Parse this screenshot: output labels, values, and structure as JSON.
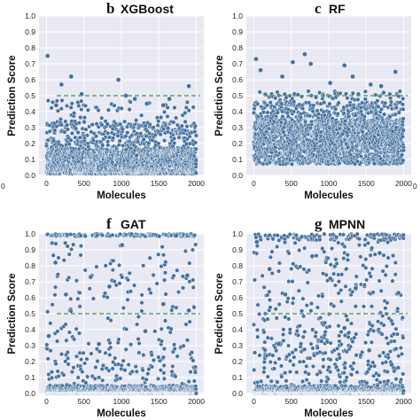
{
  "colors": {
    "plot_bg": "#e8e9f3",
    "grid": "#ffffff",
    "point": "#44719f",
    "point_edge": "#ffffff",
    "threshold": "#5aa469"
  },
  "edge_ticks": {
    "left": [
      "0"
    ],
    "right": [
      "0"
    ]
  },
  "chart_data": [
    {
      "panel": "b",
      "type": "scatter",
      "title": "XGBoost",
      "xlabel": "Molecules",
      "ylabel": "Prediction Score",
      "xticks": [
        "0",
        "500",
        "1000",
        "1500",
        "2000"
      ],
      "yticks": [
        "0.0",
        "0.1",
        "0.2",
        "0.3",
        "0.4",
        "0.5",
        "0.6",
        "0.7",
        "0.8",
        "0.9",
        "1.0"
      ],
      "xlim": [
        -100,
        2100
      ],
      "ylim": [
        0,
        1
      ],
      "threshold": 0.5,
      "grid": true,
      "n_points": 2000,
      "y_range": [
        0.0,
        0.76
      ],
      "highlighted": [
        {
          "x": 15,
          "y": 0.75
        },
        {
          "x": 330,
          "y": 0.62
        },
        {
          "x": 200,
          "y": 0.57
        },
        {
          "x": 470,
          "y": 0.51
        },
        {
          "x": 960,
          "y": 0.6
        },
        {
          "x": 1060,
          "y": 0.5
        },
        {
          "x": 1900,
          "y": 0.56
        },
        {
          "x": 1180,
          "y": 0.48
        },
        {
          "x": 1640,
          "y": 0.48
        },
        {
          "x": 1340,
          "y": 0.45
        },
        {
          "x": 1560,
          "y": 0.44
        },
        {
          "x": 130,
          "y": 0.44
        }
      ]
    },
    {
      "panel": "c",
      "type": "scatter",
      "title": "RF",
      "xlabel": "Molecules",
      "ylabel": "Prediction Score",
      "xticks": [
        "0",
        "500",
        "1000",
        "1500",
        "2000"
      ],
      "yticks": [
        "0.0",
        "0.1",
        "0.2",
        "0.3",
        "0.4",
        "0.5",
        "0.6",
        "0.7",
        "0.8",
        "0.9",
        "1.0"
      ],
      "xlim": [
        -100,
        2100
      ],
      "ylim": [
        0,
        1
      ],
      "threshold": 0.5,
      "grid": true,
      "n_points": 2000,
      "y_range": [
        0.05,
        0.76
      ],
      "highlighted": [
        {
          "x": 30,
          "y": 0.73
        },
        {
          "x": 90,
          "y": 0.66
        },
        {
          "x": 520,
          "y": 0.71
        },
        {
          "x": 680,
          "y": 0.76
        },
        {
          "x": 760,
          "y": 0.7
        },
        {
          "x": 1210,
          "y": 0.69
        },
        {
          "x": 1320,
          "y": 0.62
        },
        {
          "x": 1890,
          "y": 0.65
        },
        {
          "x": 380,
          "y": 0.62
        },
        {
          "x": 1020,
          "y": 0.58
        },
        {
          "x": 1560,
          "y": 0.57
        },
        {
          "x": 1700,
          "y": 0.56
        }
      ]
    },
    {
      "panel": "f",
      "type": "scatter",
      "title": "GAT",
      "xlabel": "Molecules",
      "ylabel": "Prediction Score",
      "xticks": [
        "0",
        "500",
        "1000",
        "1500",
        "2000"
      ],
      "yticks": [
        "0.0",
        "0.1",
        "0.2",
        "0.3",
        "0.4",
        "0.5",
        "0.6",
        "0.7",
        "0.8",
        "0.9",
        "1.0"
      ],
      "xlim": [
        -100,
        2100
      ],
      "ylim": [
        0,
        1
      ],
      "threshold": 0.5,
      "grid": true,
      "n_points": 2000,
      "y_range": [
        0.0,
        1.0
      ],
      "highlighted": [
        {
          "x": 120,
          "y": 0.82
        },
        {
          "x": 260,
          "y": 0.62
        },
        {
          "x": 590,
          "y": 0.73
        },
        {
          "x": 840,
          "y": 0.67
        },
        {
          "x": 1010,
          "y": 0.93
        },
        {
          "x": 1560,
          "y": 0.56
        },
        {
          "x": 1880,
          "y": 0.74
        },
        {
          "x": 1900,
          "y": 0.52
        },
        {
          "x": 30,
          "y": 0.36
        },
        {
          "x": 700,
          "y": 0.31
        },
        {
          "x": 1320,
          "y": 0.39
        },
        {
          "x": 1730,
          "y": 0.99
        }
      ]
    },
    {
      "panel": "g",
      "type": "scatter",
      "title": "MPNN",
      "xlabel": "Molecules",
      "ylabel": "Prediction Score",
      "xticks": [
        "0",
        "500",
        "1000",
        "1500",
        "2000"
      ],
      "yticks": [
        "0.0",
        "0.1",
        "0.2",
        "0.3",
        "0.4",
        "0.5",
        "0.6",
        "0.7",
        "0.8",
        "0.9",
        "1.0"
      ],
      "xlim": [
        -100,
        2100
      ],
      "ylim": [
        0,
        1
      ],
      "threshold": 0.5,
      "grid": true,
      "n_points": 2000,
      "y_range": [
        0.0,
        1.0
      ],
      "highlighted": [
        {
          "x": 40,
          "y": 0.95
        },
        {
          "x": 210,
          "y": 0.78
        },
        {
          "x": 420,
          "y": 0.62
        },
        {
          "x": 780,
          "y": 0.86
        },
        {
          "x": 1020,
          "y": 0.72
        },
        {
          "x": 1360,
          "y": 0.66
        },
        {
          "x": 1680,
          "y": 0.88
        },
        {
          "x": 1930,
          "y": 0.63
        },
        {
          "x": 330,
          "y": 0.31
        },
        {
          "x": 1210,
          "y": 0.41
        },
        {
          "x": 1540,
          "y": 0.27
        },
        {
          "x": 1840,
          "y": 0.18
        }
      ]
    }
  ]
}
